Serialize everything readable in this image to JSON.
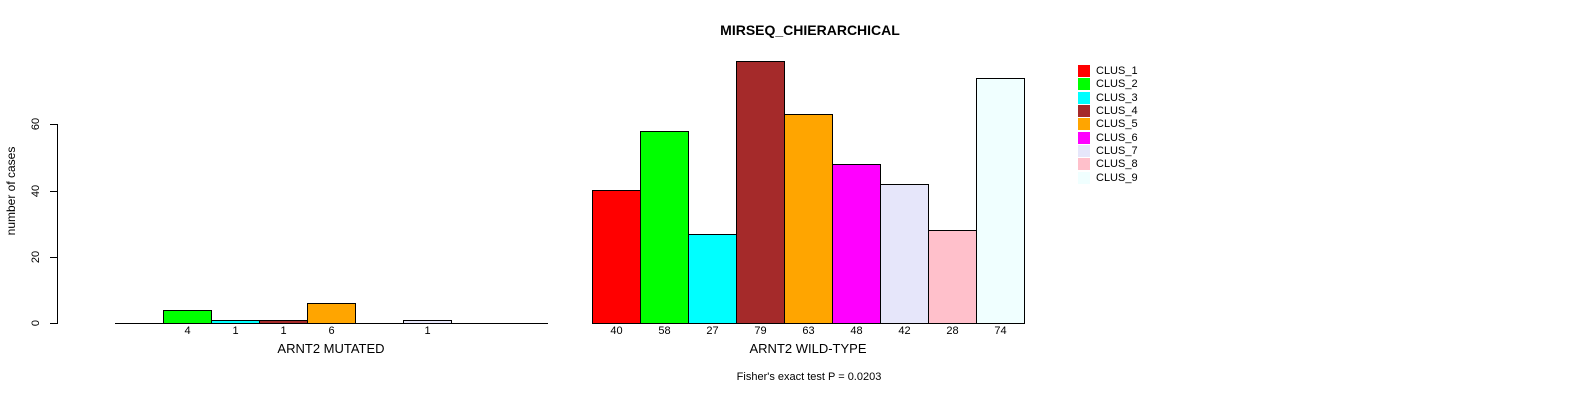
{
  "chart_data": {
    "type": "bar",
    "title": "MIRSEQ_CHIERARCHICAL",
    "ylabel": "number of cases",
    "yticks": [
      0,
      20,
      40,
      60
    ],
    "ylim": [
      0,
      80
    ],
    "grid": false,
    "legend_position": "right",
    "clusters": [
      {
        "name": "CLUS_1",
        "color": "#FF0000"
      },
      {
        "name": "CLUS_2",
        "color": "#00FF00"
      },
      {
        "name": "CLUS_3",
        "color": "#00FFFF"
      },
      {
        "name": "CLUS_4",
        "color": "#A52A2A"
      },
      {
        "name": "CLUS_5",
        "color": "#FFA500"
      },
      {
        "name": "CLUS_6",
        "color": "#FF00FF"
      },
      {
        "name": "CLUS_7",
        "color": "#E6E6FA"
      },
      {
        "name": "CLUS_8",
        "color": "#FFC0CB"
      },
      {
        "name": "CLUS_9",
        "color": "#F0FFFF"
      }
    ],
    "groups": [
      {
        "label": "ARNT2 MUTATED",
        "values": [
          0,
          4,
          1,
          1,
          6,
          0,
          1,
          0,
          0
        ]
      },
      {
        "label": "ARNT2 WILD-TYPE",
        "values": [
          40,
          58,
          27,
          79,
          63,
          48,
          42,
          28,
          74
        ]
      }
    ],
    "footnote": "Fisher's exact test P = 0.0203"
  }
}
